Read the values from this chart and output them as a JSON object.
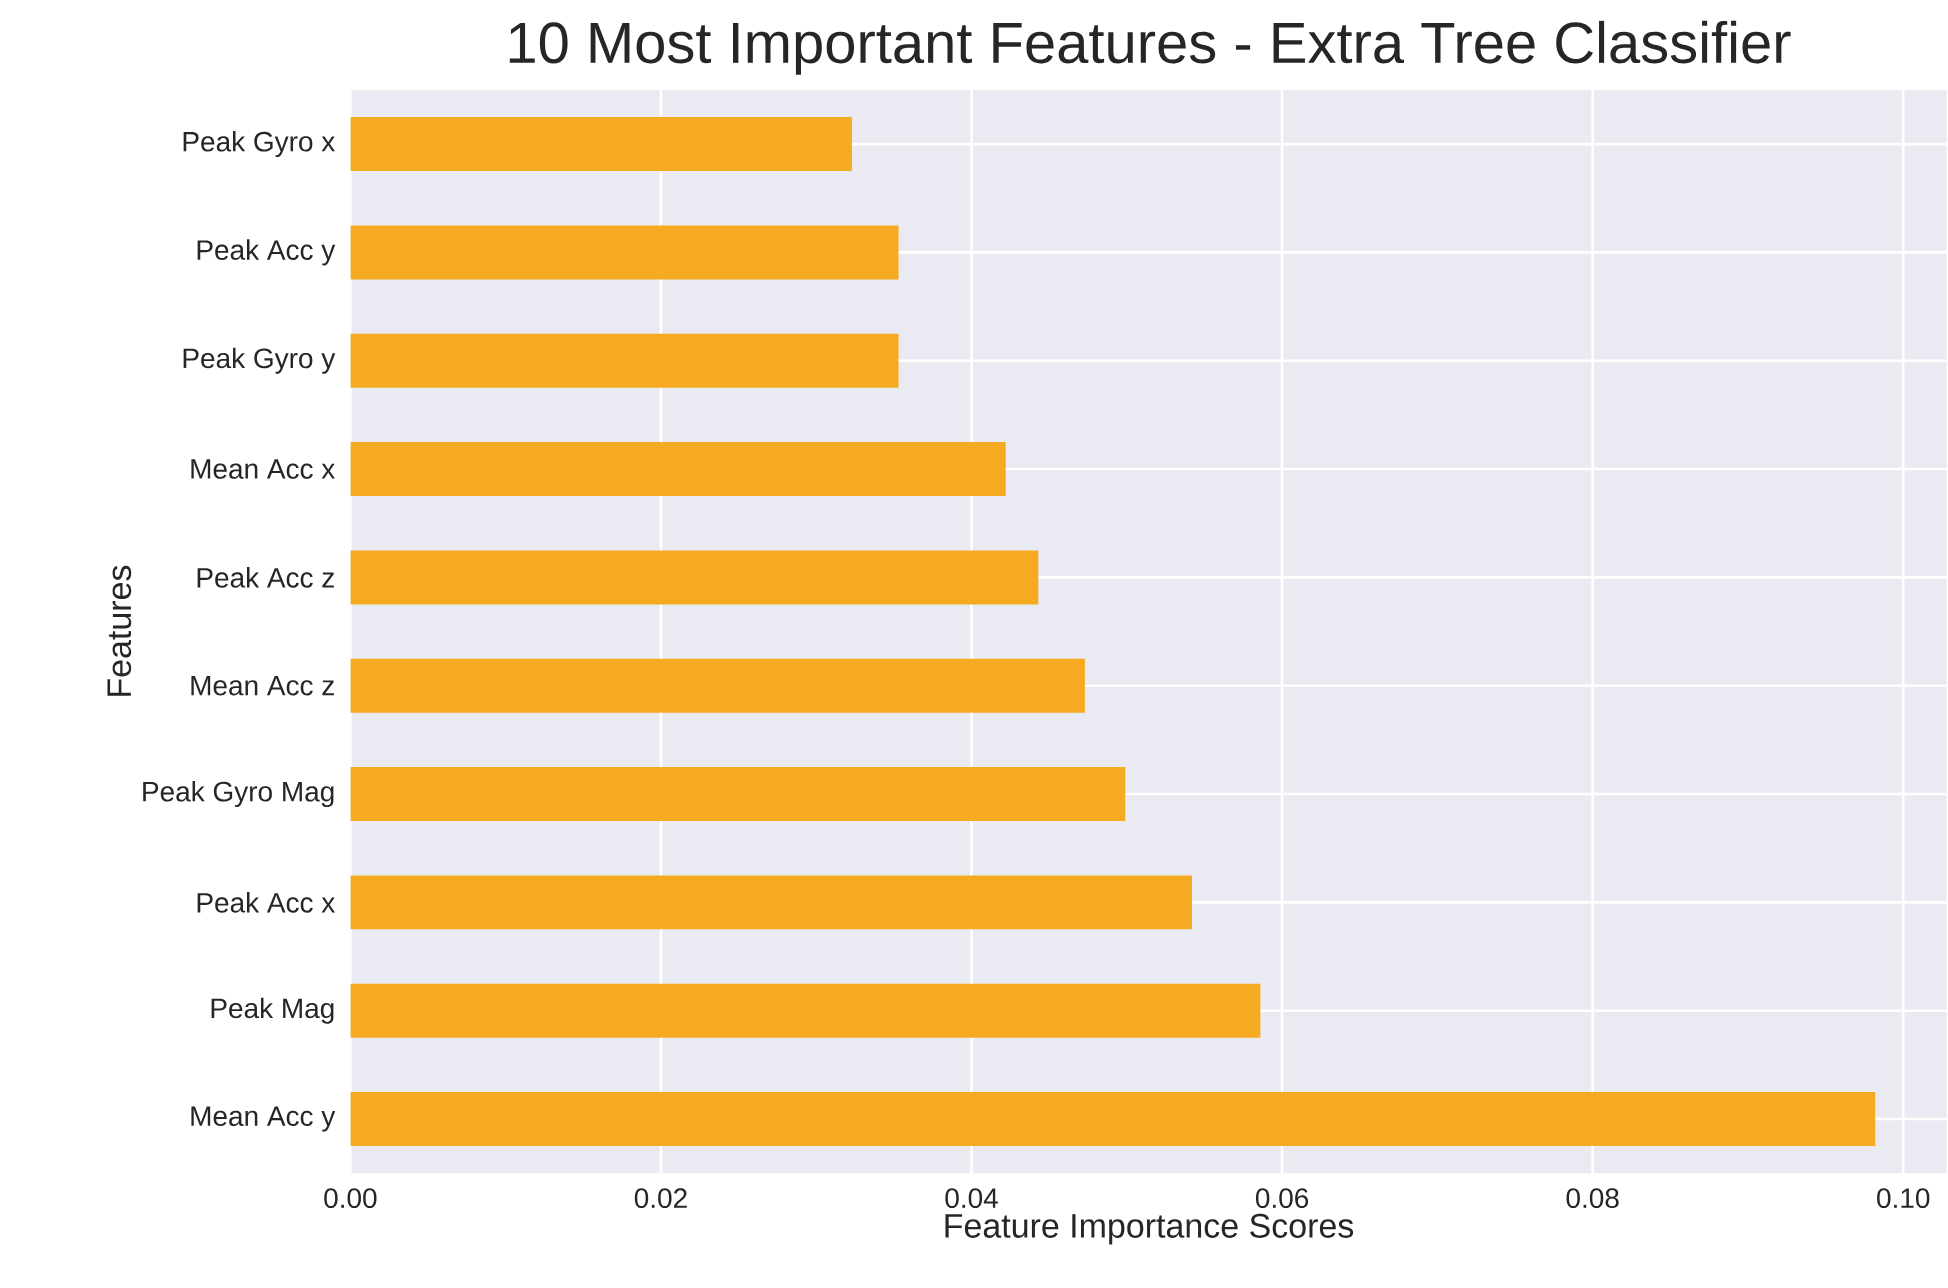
{
  "chart_data": {
    "type": "bar",
    "orientation": "horizontal",
    "title": "10 Most Important Features - Extra Tree Classifier",
    "xlabel": "Feature Importance Scores",
    "ylabel": "Features",
    "categories": [
      "Peak Gyro x",
      "Peak Acc y",
      "Peak Gyro y",
      "Mean Acc x",
      "Peak Acc z",
      "Mean Acc z",
      "Peak Gyro Mag",
      "Peak Acc x",
      "Peak Mag",
      "Mean Acc y"
    ],
    "values": [
      0.0323,
      0.0353,
      0.0353,
      0.0422,
      0.0443,
      0.0473,
      0.0499,
      0.0542,
      0.0586,
      0.0982
    ],
    "color": "#f6aa21",
    "xlim": [
      0,
      0.1028
    ],
    "xticks": [
      {
        "value": 0,
        "label": "0.00"
      },
      {
        "value": 0.02,
        "label": "0.02"
      },
      {
        "value": 0.04,
        "label": "0.04"
      },
      {
        "value": 0.06,
        "label": "0.06"
      },
      {
        "value": 0.08,
        "label": "0.08"
      },
      {
        "value": 0.1,
        "label": "0.10"
      }
    ],
    "grid": true
  }
}
